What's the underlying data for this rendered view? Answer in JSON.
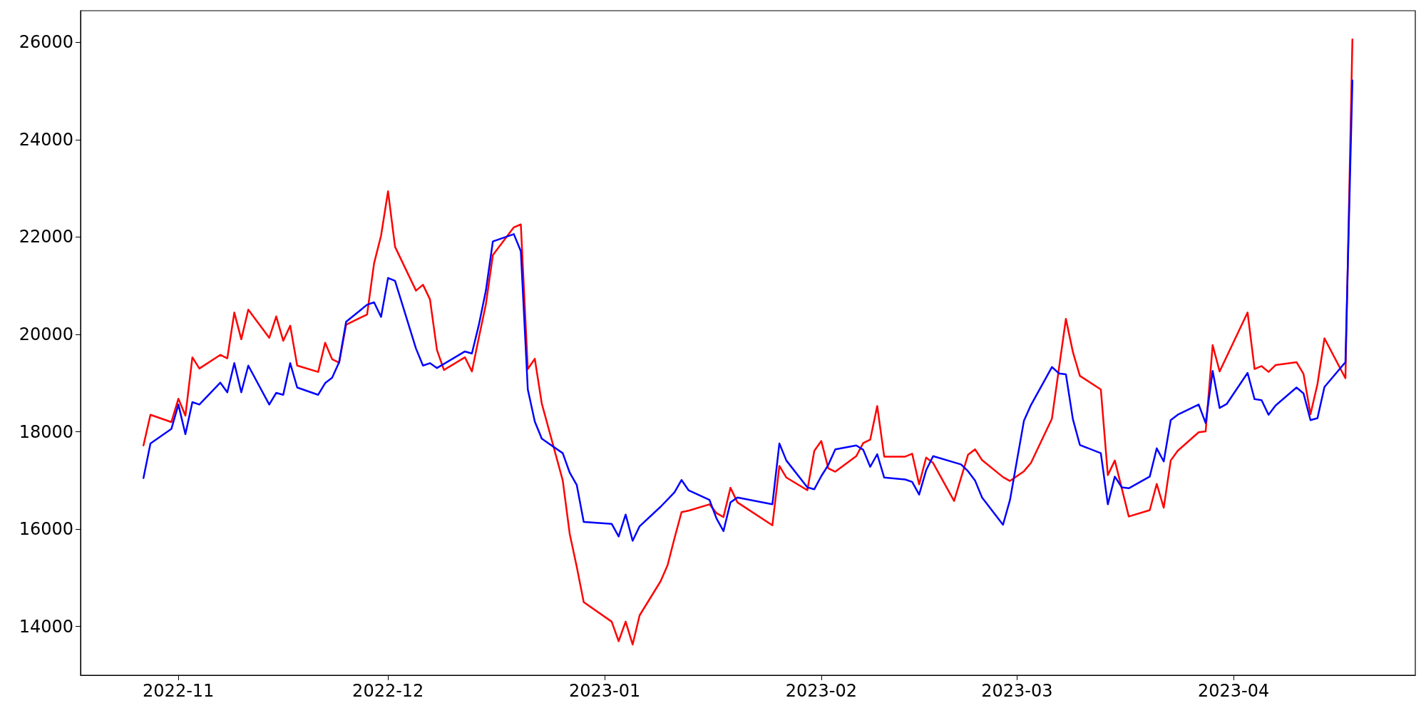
{
  "chart_data": {
    "type": "line",
    "xlim": [
      "2022-10-18",
      "2023-04-27"
    ],
    "ylim": [
      13000,
      26650
    ],
    "xticks": [
      {
        "value": "2022-11-01",
        "label": "2022-11"
      },
      {
        "value": "2022-12-01",
        "label": "2022-12"
      },
      {
        "value": "2023-01-01",
        "label": "2023-01"
      },
      {
        "value": "2023-02-01",
        "label": "2023-02"
      },
      {
        "value": "2023-03-01",
        "label": "2023-03"
      },
      {
        "value": "2023-04-01",
        "label": "2023-04"
      }
    ],
    "yticks": [
      14000,
      16000,
      18000,
      20000,
      22000,
      24000,
      26000
    ],
    "grid": false,
    "marker": "none",
    "line_style": "solid",
    "series": [
      {
        "color": "#ff0000",
        "x": [
          "2022-10-27",
          "2022-10-28",
          "2022-10-31",
          "2022-11-01",
          "2022-11-02",
          "2022-11-03",
          "2022-11-04",
          "2022-11-07",
          "2022-11-08",
          "2022-11-09",
          "2022-11-10",
          "2022-11-11",
          "2022-11-14",
          "2022-11-15",
          "2022-11-16",
          "2022-11-17",
          "2022-11-18",
          "2022-11-21",
          "2022-11-22",
          "2022-11-23",
          "2022-11-24",
          "2022-11-25",
          "2022-11-28",
          "2022-11-29",
          "2022-11-30",
          "2022-12-01",
          "2022-12-02",
          "2022-12-05",
          "2022-12-06",
          "2022-12-07",
          "2022-12-08",
          "2022-12-09",
          "2022-12-12",
          "2022-12-13",
          "2022-12-14",
          "2022-12-15",
          "2022-12-16",
          "2022-12-19",
          "2022-12-20",
          "2022-12-21",
          "2022-12-22",
          "2022-12-23",
          "2022-12-26",
          "2022-12-27",
          "2022-12-28",
          "2022-12-29",
          "2023-01-02",
          "2023-01-03",
          "2023-01-04",
          "2023-01-05",
          "2023-01-06",
          "2023-01-09",
          "2023-01-10",
          "2023-01-11",
          "2023-01-12",
          "2023-01-13",
          "2023-01-16",
          "2023-01-17",
          "2023-01-18",
          "2023-01-19",
          "2023-01-20",
          "2023-01-25",
          "2023-01-26",
          "2023-01-27",
          "2023-01-30",
          "2023-01-31",
          "2023-02-01",
          "2023-02-02",
          "2023-02-03",
          "2023-02-06",
          "2023-02-07",
          "2023-02-08",
          "2023-02-09",
          "2023-02-10",
          "2023-02-13",
          "2023-02-14",
          "2023-02-15",
          "2023-02-16",
          "2023-02-17",
          "2023-02-20",
          "2023-02-22",
          "2023-02-23",
          "2023-02-24",
          "2023-02-27",
          "2023-02-28",
          "2023-03-02",
          "2023-03-03",
          "2023-03-06",
          "2023-03-08",
          "2023-03-09",
          "2023-03-10",
          "2023-03-13",
          "2023-03-14",
          "2023-03-15",
          "2023-03-17",
          "2023-03-20",
          "2023-03-21",
          "2023-03-22",
          "2023-03-23",
          "2023-03-24",
          "2023-03-27",
          "2023-03-28",
          "2023-03-29",
          "2023-03-30",
          "2023-04-03",
          "2023-04-04",
          "2023-04-05",
          "2023-04-06",
          "2023-04-07",
          "2023-04-10",
          "2023-04-11",
          "2023-04-12",
          "2023-04-13",
          "2023-04-14",
          "2023-04-17",
          "2023-04-18"
        ],
        "values": [
          17720,
          18350,
          18200,
          18680,
          18330,
          19530,
          19300,
          19580,
          19510,
          20450,
          19900,
          20510,
          19930,
          20370,
          19870,
          20180,
          19360,
          19230,
          19830,
          19490,
          19420,
          20200,
          20410,
          21460,
          22030,
          22940,
          21800,
          20900,
          21020,
          20720,
          19680,
          19270,
          19530,
          19240,
          19940,
          20620,
          21630,
          22200,
          22260,
          19290,
          19500,
          18580,
          17000,
          15900,
          15230,
          14500,
          14100,
          13700,
          14100,
          13630,
          14230,
          14930,
          15260,
          15820,
          16350,
          16380,
          16510,
          16330,
          16250,
          16850,
          16550,
          16080,
          17300,
          17060,
          16800,
          17610,
          17810,
          17250,
          17180,
          17500,
          17770,
          17840,
          18530,
          17490,
          17490,
          17550,
          16920,
          17470,
          17360,
          16580,
          17530,
          17640,
          17420,
          17070,
          16990,
          17190,
          17360,
          18270,
          20320,
          19640,
          19150,
          18870,
          17110,
          17410,
          16260,
          16390,
          16930,
          16440,
          17410,
          17610,
          17990,
          18010,
          19780,
          19240,
          20450,
          19290,
          19350,
          19230,
          19370,
          19430,
          19190,
          18360,
          18980,
          19920,
          19100,
          26060
        ]
      },
      {
        "color": "#0000ff",
        "x": [
          "2022-10-27",
          "2022-10-28",
          "2022-10-31",
          "2022-11-01",
          "2022-11-02",
          "2022-11-03",
          "2022-11-04",
          "2022-11-07",
          "2022-11-08",
          "2022-11-09",
          "2022-11-10",
          "2022-11-11",
          "2022-11-14",
          "2022-11-15",
          "2022-11-16",
          "2022-11-17",
          "2022-11-18",
          "2022-11-21",
          "2022-11-22",
          "2022-11-23",
          "2022-11-24",
          "2022-11-25",
          "2022-11-28",
          "2022-11-29",
          "2022-11-30",
          "2022-12-01",
          "2022-12-02",
          "2022-12-05",
          "2022-12-06",
          "2022-12-07",
          "2022-12-08",
          "2022-12-12",
          "2022-12-13",
          "2022-12-14",
          "2022-12-15",
          "2022-12-16",
          "2022-12-19",
          "2022-12-20",
          "2022-12-21",
          "2022-12-22",
          "2022-12-23",
          "2022-12-26",
          "2022-12-27",
          "2022-12-28",
          "2022-12-29",
          "2023-01-02",
          "2023-01-03",
          "2023-01-04",
          "2023-01-05",
          "2023-01-06",
          "2023-01-09",
          "2023-01-10",
          "2023-01-11",
          "2023-01-12",
          "2023-01-13",
          "2023-01-16",
          "2023-01-17",
          "2023-01-18",
          "2023-01-19",
          "2023-01-20",
          "2023-01-25",
          "2023-01-26",
          "2023-01-27",
          "2023-01-30",
          "2023-01-31",
          "2023-02-01",
          "2023-02-02",
          "2023-02-03",
          "2023-02-06",
          "2023-02-07",
          "2023-02-08",
          "2023-02-09",
          "2023-02-10",
          "2023-02-13",
          "2023-02-14",
          "2023-02-15",
          "2023-02-16",
          "2023-02-17",
          "2023-02-21",
          "2023-02-22",
          "2023-02-23",
          "2023-02-24",
          "2023-02-27",
          "2023-02-28",
          "2023-03-02",
          "2023-03-03",
          "2023-03-06",
          "2023-03-07",
          "2023-03-08",
          "2023-03-09",
          "2023-03-10",
          "2023-03-13",
          "2023-03-14",
          "2023-03-15",
          "2023-03-16",
          "2023-03-17",
          "2023-03-20",
          "2023-03-21",
          "2023-03-22",
          "2023-03-23",
          "2023-03-24",
          "2023-03-27",
          "2023-03-28",
          "2023-03-29",
          "2023-03-30",
          "2023-03-31",
          "2023-04-03",
          "2023-04-04",
          "2023-04-05",
          "2023-04-06",
          "2023-04-07",
          "2023-04-10",
          "2023-04-11",
          "2023-04-12",
          "2023-04-13",
          "2023-04-14",
          "2023-04-17",
          "2023-04-18"
        ],
        "values": [
          17050,
          17760,
          18060,
          18560,
          17950,
          18610,
          18560,
          19010,
          18810,
          19410,
          18810,
          19360,
          18560,
          18800,
          18760,
          19410,
          18910,
          18760,
          19000,
          19110,
          19430,
          20260,
          20610,
          20660,
          20360,
          21160,
          21100,
          19710,
          19360,
          19410,
          19310,
          19650,
          19610,
          20200,
          20900,
          21910,
          22060,
          21710,
          18870,
          18210,
          17860,
          17560,
          17160,
          16910,
          16150,
          16110,
          15850,
          16300,
          15760,
          16060,
          16460,
          16610,
          16760,
          17010,
          16800,
          16600,
          16220,
          15960,
          16550,
          16650,
          16510,
          17760,
          17410,
          16860,
          16820,
          17090,
          17320,
          17640,
          17720,
          17630,
          17280,
          17540,
          17060,
          17020,
          16970,
          16710,
          17210,
          17500,
          17330,
          17190,
          17000,
          16650,
          16090,
          16600,
          18230,
          18550,
          19330,
          19200,
          19180,
          18260,
          17730,
          17560,
          16510,
          17080,
          16860,
          16840,
          17080,
          17660,
          17390,
          18240,
          18350,
          18560,
          18180,
          19250,
          18490,
          18570,
          19210,
          18670,
          18650,
          18350,
          18540,
          18910,
          18790,
          18240,
          18280,
          18920,
          19430,
          25220
        ]
      }
    ]
  }
}
